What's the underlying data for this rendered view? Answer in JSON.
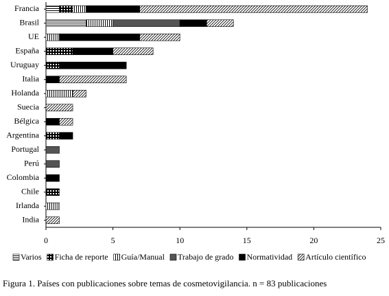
{
  "chart_data": {
    "type": "stacked-barh",
    "caption": "Figura 1. Países con publicaciones sobre temas de cosmetovigilancia. n = 83 publicaciones",
    "categories": [
      "Francia",
      "Brasil",
      "UE",
      "España",
      "Uruguay",
      "Italia",
      "Holanda",
      "Suecia",
      "Bélgica",
      "Argentina",
      "Portugal",
      "Perú",
      "Colombia",
      "Chile",
      "Irlanda",
      "India"
    ],
    "series": [
      {
        "name": "Varios",
        "color": "#000000",
        "pattern": "horizontal",
        "values": [
          1,
          3,
          0,
          0,
          0,
          0,
          0,
          0,
          0,
          0,
          0,
          0,
          0,
          0,
          0,
          0
        ]
      },
      {
        "name": "Ficha de reporte",
        "color": "#000000",
        "pattern": "grid",
        "values": [
          1,
          0,
          0,
          2,
          1,
          0,
          0,
          0,
          0,
          1,
          0,
          0,
          0,
          1,
          0,
          0
        ]
      },
      {
        "name": "Guía/Manual",
        "color": "#000000",
        "pattern": "vertical",
        "values": [
          1,
          2,
          1,
          0,
          0,
          0,
          2,
          0,
          0,
          0,
          0,
          0,
          0,
          0,
          1,
          0
        ]
      },
      {
        "name": "Trabajo de grado",
        "color": "#555555",
        "pattern": "solid",
        "values": [
          0,
          5,
          0,
          0,
          0,
          0,
          0,
          0,
          0,
          0,
          1,
          1,
          0,
          0,
          0,
          0
        ]
      },
      {
        "name": "Normatividad",
        "color": "#000000",
        "pattern": "solid",
        "values": [
          4,
          2,
          6,
          3,
          5,
          1,
          0,
          0,
          1,
          1,
          0,
          0,
          1,
          0,
          0,
          0
        ]
      },
      {
        "name": "Artículo científico",
        "color": "#000000",
        "pattern": "diagonal",
        "values": [
          17,
          2,
          3,
          3,
          0,
          5,
          1,
          2,
          1,
          0,
          0,
          0,
          0,
          0,
          0,
          1
        ]
      }
    ],
    "xlim": [
      0,
      25
    ],
    "xticks": [
      0,
      5,
      10,
      15,
      20,
      25
    ],
    "legend": "bottom"
  }
}
